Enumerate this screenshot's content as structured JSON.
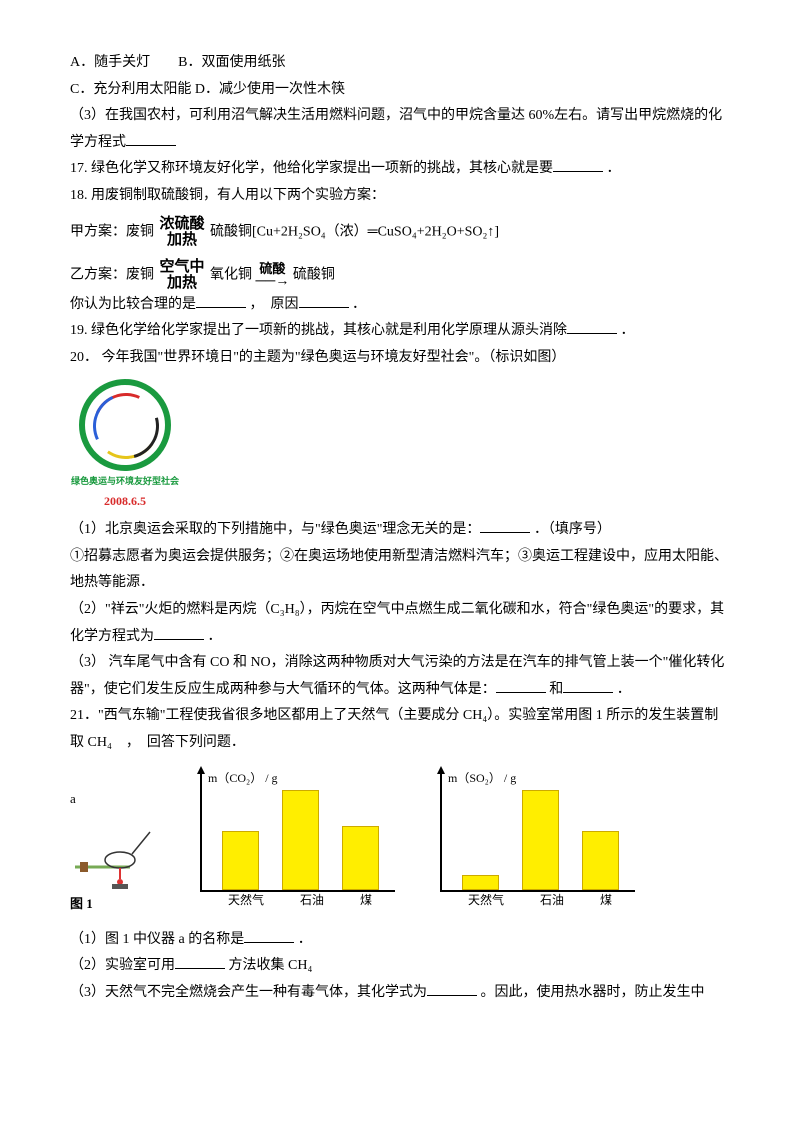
{
  "optA": "A．随手关灯",
  "optB": "B．双面使用纸张",
  "optC": "C．充分利用太阳能 D．减少使用一次性木筷",
  "q3": "（3）在我国农村，可利用沼气解决生活用燃料问题，沼气中的甲烷含量达 60%左右。请写出甲烷燃烧的化学方程式",
  "q17": "17. 绿色化学又称环境友好化学，他给化学家提出一项新的挑战，其核心就是要",
  "period": "．",
  "q18": "18. 用废铜制取硫酸铜，有人用以下两个实验方案：",
  "planA_prefix": "甲方案：废铜",
  "stack_top1": "浓硫酸",
  "stack_bot1": "加热",
  "planA_rest": " 硫酸铜[Cu+2H₂SO₄（浓）═CuSO₄+2H₂O+SO₂↑]",
  "planB_prefix": "乙方案：废铜",
  "stack_top2": "空气中",
  "stack_bot2": "加热",
  "planB_mid": " 氧化铜",
  "arrow_top": "硫酸",
  "planB_rest": " 硫酸铜",
  "q18_ask": "你认为比较合理的是",
  "q18_ask2": "，　原因",
  "q19": "19. 绿色化学给化学家提出了一项新的挑战，其核心就是利用化学原理从源头消除",
  "q20": "20． 今年我国\"世界环境日\"的主题为\"绿色奥运与环境友好型社会\"。（标识如图）",
  "logo_text1": "绿色奥运与环境友好型社会",
  "logo_text2": "2008.6.5",
  "q20_1a": "（1）北京奥运会采取的下列措施中，与\"绿色奥运\"理念无关的是：",
  "q20_1b": "．（填序号）",
  "q20_1c": "①招募志愿者为奥运会提供服务；②在奥运场地使用新型清洁燃料汽车；③奥运工程建设中，应用太阳能、地热等能源．",
  "q20_2a": "（2）\"祥云\"火炬的燃料是丙烷（C₃H₈），丙烷在空气中点燃生成二氧化碳和水，符合\"绿色奥运\"的要求，其化学方程式为",
  "q20_3a": "（3） 汽车尾气中含有 CO 和 NO，消除这两种物质对大气污染的方法是在汽车的排气管上装一个\"催化转化器\"，使它们发生反应生成两种参与大气循环的气体。这两种气体是：",
  "q20_3b": " 和",
  "q21": "21．\"西气东输\"工程使我省很多地区都用上了天然气（主要成分 CH₄）。实验室常用图 1 所示的发生装置制取 CH₄　，　回答下列问题．",
  "fig1_caption": "图 1",
  "a_letter": "a",
  "chart1_ylabel": "m（CO₂） / g",
  "chart2_ylabel": "m（SO₂） / g",
  "xlabels": [
    "天然气",
    "石油",
    "煤"
  ],
  "chart1_values": [
    55,
    95,
    60
  ],
  "chart2_values": [
    12,
    95,
    55
  ],
  "bar_color": "#ffee00",
  "bar_border": "#ccaa00",
  "q21_1": "（1）图 1 中仪器 a 的名称是",
  "q21_2a": "（2）实验室可用",
  "q21_2b": " 方法收集 CH₄",
  "q21_3a": "（3）天然气不完全燃烧会产生一种有毒气体，其化学式为",
  "q21_3b": "。因此，使用热水器时，防止发生中"
}
